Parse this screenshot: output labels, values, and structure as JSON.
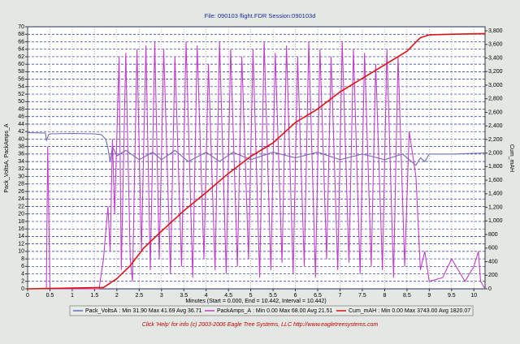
{
  "chart_data": {
    "type": "line",
    "title": "File: 090103 flight.FDR   Session:090103d",
    "x_label": "Minutes (Start = 0.000, End = 10.442, Interval = 10.442)",
    "y_label": "Pack_VoltsA, PackAmps_A",
    "y2_label": "Cum_mAH",
    "footer": "Click 'Help' for info  (c) 2003-2006 Eagle Tree Systems, LLC     http://www.eagletreesystems.com",
    "xlim": [
      0,
      10.25
    ],
    "xticks": [
      0,
      0.5,
      1,
      1.5,
      2,
      2.5,
      3,
      3.5,
      4,
      4.5,
      5,
      5.5,
      6,
      6.5,
      7,
      7.5,
      8,
      8.5,
      9,
      9.5,
      10
    ],
    "ylim": [
      0,
      70
    ],
    "yticks": [
      0,
      2,
      4,
      6,
      8,
      10,
      12,
      14,
      16,
      18,
      20,
      22,
      24,
      26,
      28,
      30,
      32,
      34,
      36,
      38,
      40,
      42,
      44,
      46,
      48,
      50,
      52,
      54,
      56,
      58,
      60,
      62,
      64,
      66,
      68,
      70
    ],
    "y2lim": [
      0,
      3860
    ],
    "y2ticks": [
      0,
      200,
      400,
      600,
      800,
      {
        "value": 1000,
        "label": "1,000"
      },
      {
        "value": 1200,
        "label": "1,200"
      },
      {
        "value": 1400,
        "label": "1,400"
      },
      {
        "value": 1600,
        "label": "1,600"
      },
      {
        "value": 1800,
        "label": "1,800"
      },
      {
        "value": 2000,
        "label": "2,000"
      },
      {
        "value": 2200,
        "label": "2,200"
      },
      {
        "value": 2400,
        "label": "2,400"
      },
      {
        "value": 2600,
        "label": "2,600"
      },
      {
        "value": 2800,
        "label": "2,800"
      },
      {
        "value": 3000,
        "label": "3,000"
      },
      {
        "value": 3200,
        "label": "3,200"
      },
      {
        "value": 3400,
        "label": "3,400"
      },
      {
        "value": 3600,
        "label": "3,600"
      },
      {
        "value": 3800,
        "label": "3,800"
      }
    ],
    "grid": true,
    "series": [
      {
        "name": "Pack_VoltsA",
        "summary": ":  Min 31.90   Max 41.69   Avg 36.71",
        "color": "#6c6cb8",
        "x": [
          0,
          0.4,
          0.42,
          0.47,
          0.5,
          1.0,
          1.5,
          1.65,
          1.75,
          1.8,
          1.85,
          1.9,
          2.0,
          2.2,
          2.5,
          2.8,
          3.0,
          3.3,
          3.6,
          4.0,
          4.3,
          4.6,
          5.0,
          5.5,
          6.0,
          6.5,
          7.0,
          7.5,
          8.0,
          8.4,
          8.7,
          8.8,
          8.9,
          9.0,
          9.5,
          10.0,
          10.25
        ],
        "values": [
          41.7,
          41.6,
          39.5,
          41.2,
          41.4,
          41.5,
          41.4,
          41.2,
          40,
          37.5,
          34,
          38,
          35.5,
          37,
          34.5,
          36.5,
          34.5,
          37,
          34,
          36.5,
          34,
          36.5,
          34.5,
          36.5,
          35,
          36.5,
          34.5,
          36,
          34.5,
          36,
          33,
          35,
          34,
          36,
          36,
          36.2,
          36.3
        ]
      },
      {
        "name": "PackAmps_A",
        "summary": ":  Min 0.00   Max 68.00   Avg 21.51",
        "color": "#c040c8",
        "x": [
          0,
          0.42,
          0.45,
          0.5,
          0.55,
          1.6,
          1.7,
          1.75,
          1.8,
          1.85,
          1.9,
          1.95,
          2.05,
          2.1,
          2.2,
          2.3,
          2.35,
          2.45,
          2.55,
          2.65,
          2.75,
          2.85,
          2.95,
          3.05,
          3.2,
          3.3,
          3.45,
          3.55,
          3.7,
          3.8,
          3.95,
          4.05,
          4.2,
          4.3,
          4.45,
          4.55,
          4.7,
          4.8,
          4.95,
          5.05,
          5.2,
          5.3,
          5.45,
          5.55,
          5.7,
          5.8,
          5.95,
          6.05,
          6.2,
          6.3,
          6.45,
          6.55,
          6.7,
          6.8,
          6.95,
          7.05,
          7.2,
          7.3,
          7.45,
          7.55,
          7.7,
          7.8,
          7.95,
          8.05,
          8.2,
          8.3,
          8.45,
          8.55,
          8.7,
          8.8,
          8.9,
          9.0,
          9.3,
          9.5,
          9.8,
          10.0,
          10.1,
          10.15,
          10.25
        ],
        "values": [
          0,
          0,
          38,
          0,
          0,
          0,
          8,
          15,
          22,
          10,
          40,
          20,
          62,
          5,
          63,
          8,
          2,
          64,
          10,
          65,
          5,
          66,
          8,
          64,
          4,
          62,
          6,
          66,
          3,
          65,
          8,
          60,
          5,
          66,
          4,
          64,
          6,
          62,
          8,
          64,
          3,
          66,
          5,
          63,
          7,
          65,
          4,
          62,
          6,
          66,
          3,
          64,
          8,
          62,
          5,
          66,
          7,
          64,
          4,
          63,
          6,
          60,
          5,
          64,
          3,
          62,
          6,
          42,
          30,
          5,
          10,
          2,
          3,
          8,
          2,
          6,
          10,
          2,
          0
        ]
      },
      {
        "name": "Cum_mAH",
        "summary": ":  Min 0.00   Max 3743.00   Avg 1820.07",
        "color": "#e01010",
        "axis": "y2",
        "x": [
          0,
          1.7,
          2.0,
          2.3,
          2.6,
          3.0,
          3.5,
          4.0,
          4.5,
          5.0,
          5.5,
          6.0,
          6.5,
          7.0,
          7.5,
          8.0,
          8.5,
          8.8,
          9.0,
          9.5,
          10.25
        ],
        "values": [
          0,
          20,
          150,
          340,
          600,
          850,
          1150,
          1420,
          1700,
          1950,
          2150,
          2450,
          2650,
          2900,
          3100,
          3300,
          3500,
          3700,
          3740,
          3750,
          3760
        ]
      }
    ]
  }
}
